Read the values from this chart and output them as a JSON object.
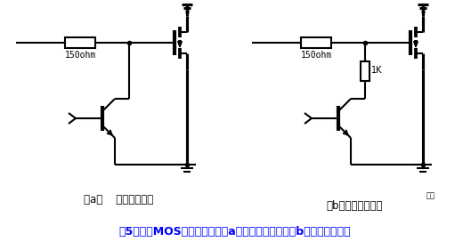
{
  "title": "图5：功率MOS管关断电路。（a）快速关断电路；（b）慢速关断电路",
  "title_color": "#0000FF",
  "label_a_text": "（a）    快速关断电路",
  "label_b_text": "（b）慢速关断电路",
  "label_b2_text": "控制",
  "resistor_label_a": "150ohm",
  "resistor_label_b": "150ohm",
  "resistor_label_1k": "1K",
  "bg_color": "#FFFFFF",
  "line_color": "#000000",
  "title_fontsize": 9,
  "label_fontsize": 8.5
}
